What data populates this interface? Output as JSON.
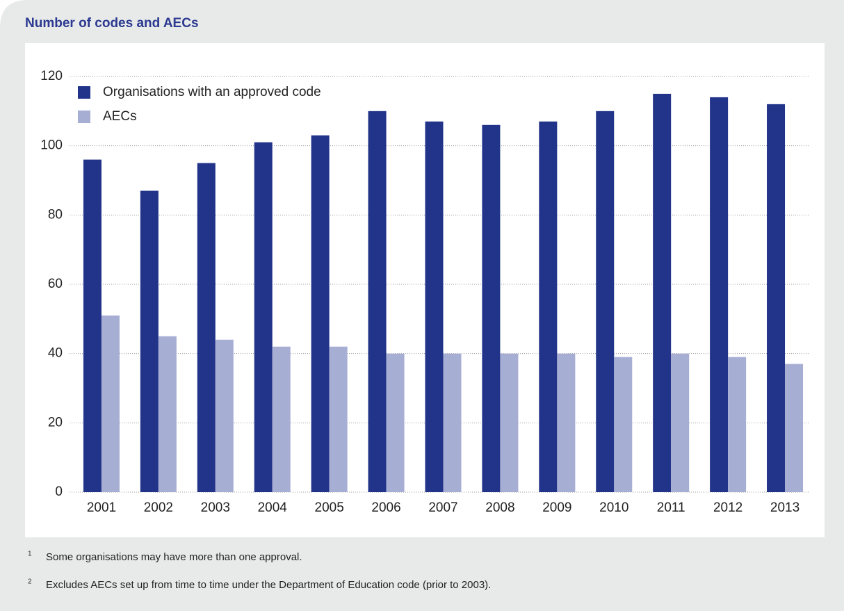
{
  "chart_data": {
    "type": "bar",
    "title": "Number of codes and AECs",
    "categories": [
      "2001",
      "2002",
      "2003",
      "2004",
      "2005",
      "2006",
      "2007",
      "2008",
      "2009",
      "2010",
      "2011",
      "2012",
      "2013"
    ],
    "series": [
      {
        "name": "Organisations with an approved code",
        "color": "#22338a",
        "values": [
          96,
          87,
          95,
          101,
          103,
          110,
          107,
          106,
          107,
          110,
          115,
          114,
          112
        ]
      },
      {
        "name": "AECs",
        "color": "#a7aed4",
        "values": [
          51,
          45,
          44,
          42,
          42,
          40,
          40,
          40,
          40,
          39,
          40,
          39,
          37
        ]
      }
    ],
    "ylim": [
      0,
      120
    ],
    "yticks": [
      0,
      20,
      40,
      60,
      80,
      100,
      120
    ],
    "grid": true,
    "legend": "top-left"
  },
  "footnotes": [
    {
      "marker": "1",
      "text": "Some organisations may have more than one approval."
    },
    {
      "marker": "2",
      "text": "Excludes AECs set up from time to time under the Department of Education code (prior to 2003)."
    }
  ]
}
